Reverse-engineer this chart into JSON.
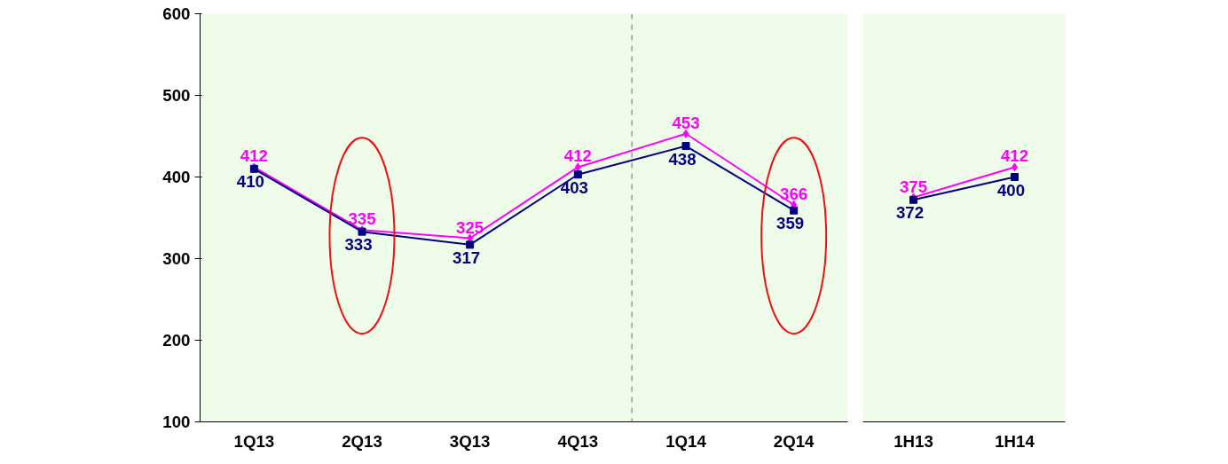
{
  "chart_data": [
    {
      "type": "line",
      "categories": [
        "1Q13",
        "2Q13",
        "3Q13",
        "4Q13",
        "1Q14",
        "2Q14"
      ],
      "series": [
        {
          "color": "#ff00ff",
          "marker": "diamond",
          "values": [
            412,
            335,
            325,
            412,
            453,
            366
          ]
        },
        {
          "color": "#000080",
          "marker": "square",
          "values": [
            410,
            333,
            317,
            403,
            438,
            359
          ]
        }
      ],
      "ylim": [
        100,
        600
      ],
      "yticks": [
        100,
        200,
        300,
        400,
        500,
        600
      ],
      "data_labels": true,
      "grid": false
    },
    {
      "type": "line",
      "categories": [
        "1H13",
        "1H14"
      ],
      "series": [
        {
          "color": "#ff00ff",
          "marker": "diamond",
          "values": [
            375,
            412
          ]
        },
        {
          "color": "#000080",
          "marker": "square",
          "values": [
            372,
            400
          ]
        }
      ],
      "ylim": [
        100,
        600
      ],
      "yticks": [
        100,
        200,
        300,
        400,
        500,
        600
      ],
      "data_labels": true,
      "grid": false,
      "tick_labels": "x"
    }
  ]
}
